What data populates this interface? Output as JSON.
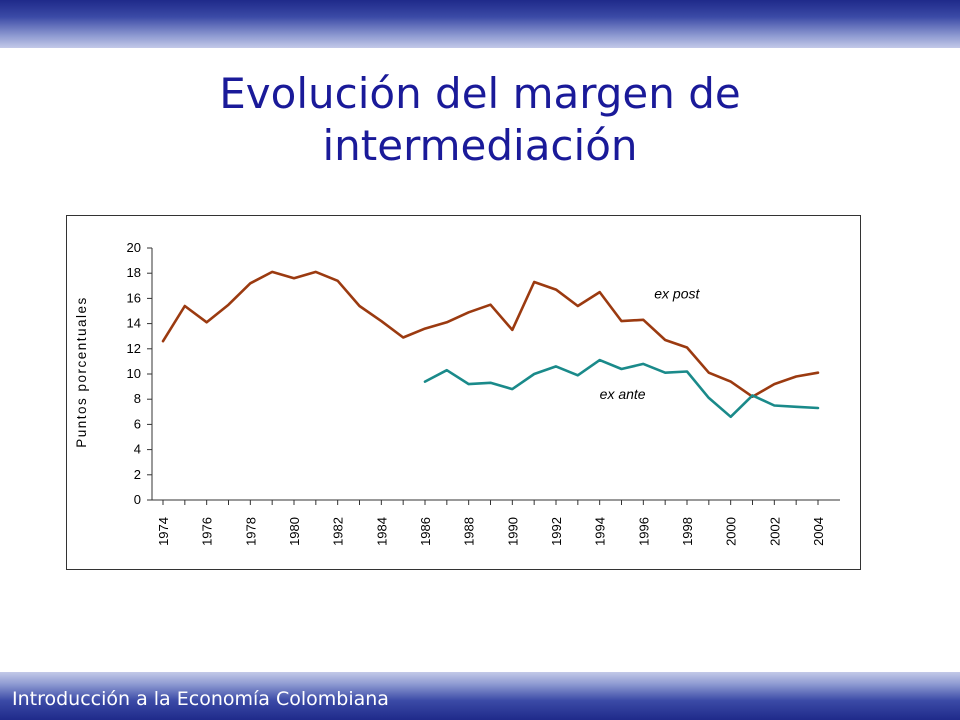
{
  "slide": {
    "title_line1": "Evolución del margen de",
    "title_line2": "intermediación",
    "footer": "Introducción a la Economía Colombiana"
  },
  "colors": {
    "ex_post": "#9b3a10",
    "ex_ante": "#1a8a8a",
    "title": "#1a1a99",
    "band": "#2a3594"
  },
  "chart_data": {
    "type": "line",
    "ylabel": "Puntos porcentuales",
    "xlabel": "",
    "ylim": [
      0,
      20
    ],
    "xlim": [
      1974,
      2004
    ],
    "y_ticks": [
      0,
      2,
      4,
      6,
      8,
      10,
      12,
      14,
      16,
      18,
      20
    ],
    "x_ticks": [
      "1974",
      "1976",
      "1978",
      "1980",
      "1982",
      "1984",
      "1986",
      "1988",
      "1990",
      "1992",
      "1994",
      "1996",
      "1998",
      "2000",
      "2002",
      "2004"
    ],
    "grid": false,
    "series": [
      {
        "name": "ex post",
        "x": [
          1974,
          1975,
          1976,
          1977,
          1978,
          1979,
          1980,
          1981,
          1982,
          1983,
          1984,
          1985,
          1986,
          1987,
          1988,
          1989,
          1990,
          1991,
          1992,
          1993,
          1994,
          1995,
          1996,
          1997,
          1998,
          1999,
          2000,
          2001,
          2002,
          2003,
          2004
        ],
        "values": [
          12.6,
          15.4,
          14.1,
          15.5,
          17.2,
          18.1,
          17.6,
          18.1,
          17.4,
          15.4,
          14.2,
          12.9,
          13.6,
          14.1,
          14.9,
          15.5,
          13.5,
          17.3,
          16.7,
          15.4,
          16.5,
          14.2,
          14.3,
          12.7,
          12.1,
          10.1,
          9.4,
          8.2,
          9.2,
          9.8,
          10.1
        ]
      },
      {
        "name": "ex ante",
        "x": [
          1986,
          1987,
          1988,
          1989,
          1990,
          1991,
          1992,
          1993,
          1994,
          1995,
          1996,
          1997,
          1998,
          1999,
          2000,
          2001,
          2002,
          2003,
          2004
        ],
        "values": [
          9.4,
          10.3,
          9.2,
          9.3,
          8.8,
          10.0,
          10.6,
          9.9,
          11.1,
          10.4,
          10.8,
          10.1,
          10.2,
          8.1,
          6.6,
          8.3,
          7.5,
          7.4,
          7.3
        ]
      }
    ],
    "annotations": [
      {
        "text": "ex post",
        "series": "ex post",
        "near_x": 1996.5,
        "near_y": 16.0
      },
      {
        "text": "ex ante",
        "series": "ex ante",
        "near_x": 1994.0,
        "near_y": 8.0
      }
    ]
  }
}
